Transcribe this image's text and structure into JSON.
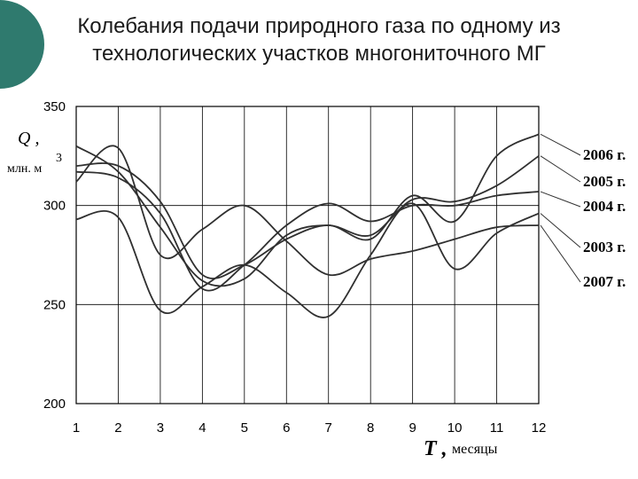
{
  "header": {
    "title_line1": "Колебания подачи природного газа по одному из",
    "title_line2": "технологических участков многониточного МГ"
  },
  "chart_data": {
    "type": "line",
    "x": [
      1,
      2,
      3,
      4,
      5,
      6,
      7,
      8,
      9,
      10,
      11,
      12
    ],
    "xlim": [
      1,
      12
    ],
    "ylim": [
      200,
      350
    ],
    "y_ticks": [
      200,
      250,
      300,
      350
    ],
    "grid": true,
    "legend": "right",
    "ylabel_symbol": "Q ,",
    "ylabel_unit": "млн. м",
    "ylabel_unit_sup": "3",
    "xlabel_symbol": "T ,",
    "xlabel_unit": "месяцы",
    "series": [
      {
        "name": "2006 г.",
        "values": [
          320,
          320,
          302,
          265,
          270,
          283,
          290,
          283,
          305,
          292,
          325,
          336
        ]
      },
      {
        "name": "2005 г.",
        "values": [
          330,
          317,
          289,
          262,
          263,
          285,
          290,
          285,
          303,
          302,
          310,
          325
        ]
      },
      {
        "name": "2004 г.",
        "values": [
          317,
          314,
          296,
          258,
          270,
          290,
          301,
          292,
          300,
          300,
          305,
          307
        ]
      },
      {
        "name": "2003 г.",
        "values": [
          293,
          294,
          247,
          259,
          270,
          256,
          244,
          275,
          301,
          268,
          286,
          296
        ]
      },
      {
        "name": "2007 г.",
        "values": [
          312,
          329,
          275,
          288,
          300,
          282,
          265,
          273,
          277,
          283,
          289,
          290
        ]
      }
    ]
  }
}
